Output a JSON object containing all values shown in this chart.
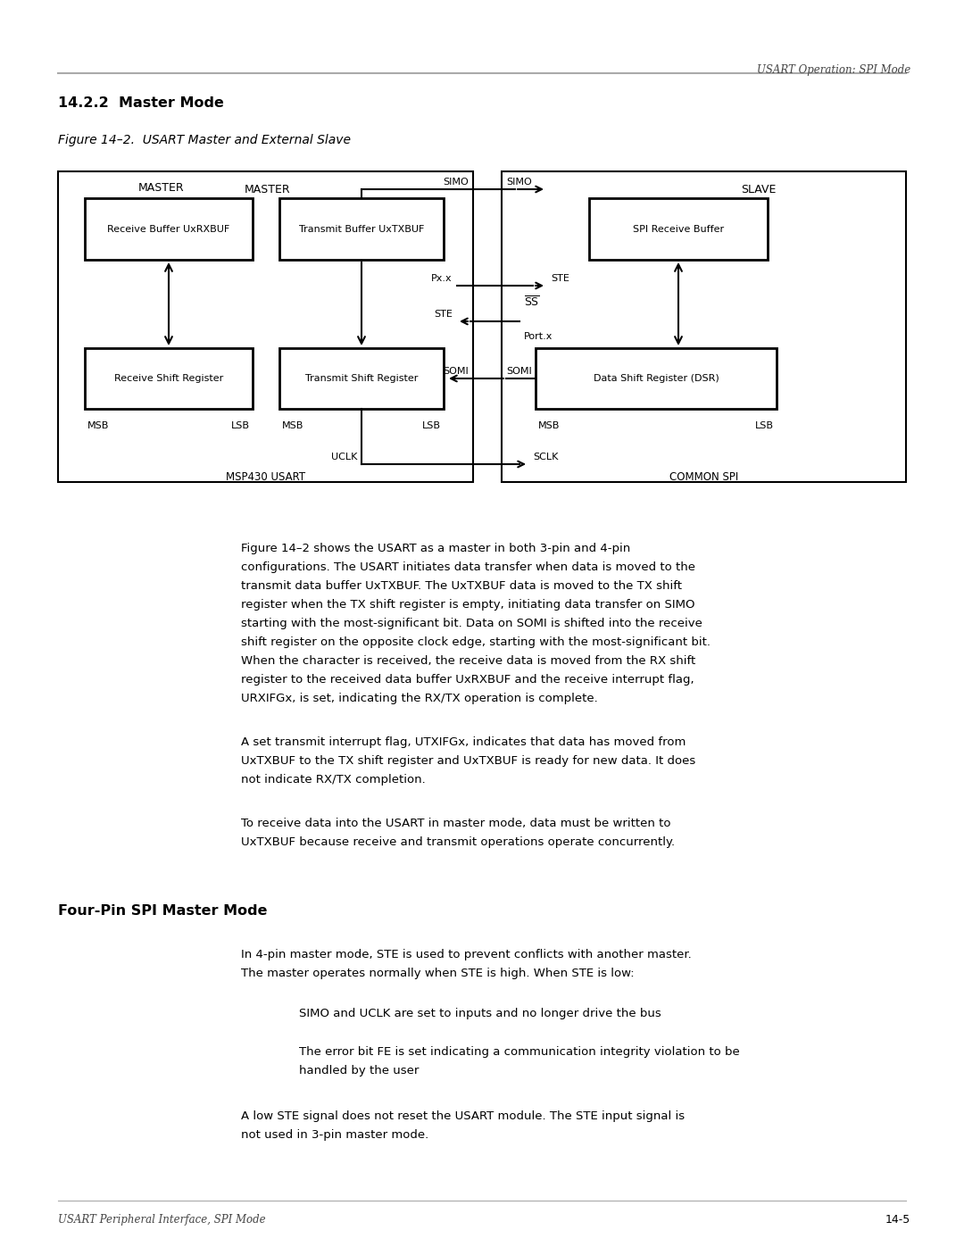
{
  "header_right": "USART Operation: SPI Mode",
  "section_title": "14.2.2  Master Mode",
  "figure_caption": "Figure 14–2.  USART Master and External Slave",
  "master_label": "MASTER",
  "slave_label": "SLAVE",
  "master_bottom_label": "MSP430 USART",
  "slave_bottom_label": "COMMON SPI",
  "simo_label_m": "SIMO",
  "simo_label_s": "SIMO",
  "somi_label_m": "SOMI",
  "somi_label_s": "SOMI",
  "uclk_label": "UCLK",
  "sclk_label": "SCLK",
  "pxx_label": "Px.x",
  "ste_left_label": "STE",
  "ste_right_label": "STE",
  "ss_bar_label": "SS",
  "portx_label": "Port.x",
  "rb_label": "Receive Buffer UxRXBUF",
  "tb_label": "Transmit Buffer UxTXBUF",
  "spib_label": "SPI Receive Buffer",
  "rsr_label": "Receive Shift Register",
  "tsr_label": "Transmit Shift Register",
  "dsr_label": "Data Shift Register (DSR)",
  "msb_label": "MSB",
  "lsb_label": "LSB",
  "para1_lines": [
    "Figure 14–2 shows the USART as a master in both 3-pin and 4-pin",
    "configurations. The USART initiates data transfer when data is moved to the",
    "transmit data buffer UxTXBUF. The UxTXBUF data is moved to the TX shift",
    "register when the TX shift register is empty, initiating data transfer on SIMO",
    "starting with the most-significant bit. Data on SOMI is shifted into the receive",
    "shift register on the opposite clock edge, starting with the most-significant bit.",
    "When the character is received, the receive data is moved from the RX shift",
    "register to the received data buffer UxRXBUF and the receive interrupt flag,",
    "URXIFGx, is set, indicating the RX/TX operation is complete."
  ],
  "para2_lines": [
    "A set transmit interrupt flag, UTXIFGx, indicates that data has moved from",
    "UxTXBUF to the TX shift register and UxTXBUF is ready for new data. It does",
    "not indicate RX/TX completion."
  ],
  "para3_lines": [
    "To receive data into the USART in master mode, data must be written to",
    "UxTXBUF because receive and transmit operations operate concurrently."
  ],
  "four_pin_title": "Four-Pin SPI Master Mode",
  "para4_lines": [
    "In 4-pin master mode, STE is used to prevent conflicts with another master.",
    "The master operates normally when STE is high. When STE is low:"
  ],
  "bullet1": "SIMO and UCLK are set to inputs and no longer drive the bus",
  "bullet2_lines": [
    "The error bit FE is set indicating a communication integrity violation to be",
    "handled by the user"
  ],
  "para5_lines": [
    "A low STE signal does not reset the USART module. The STE input signal is",
    "not used in 3-pin master mode."
  ],
  "footer_left": "USART Peripheral Interface, SPI Mode",
  "footer_right": "14-5"
}
